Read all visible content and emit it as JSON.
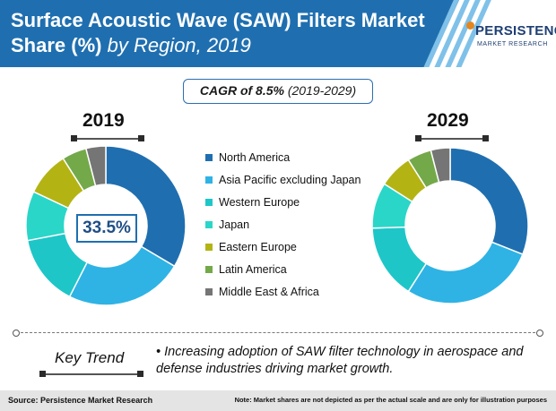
{
  "header": {
    "title_bold": "Surface Acoustic Wave (SAW) Filters Market Share (%)",
    "title_rest": " by Region, 2019",
    "logo_name": "PERSISTENCE",
    "logo_sub": "MARKET RESEARCH"
  },
  "cagr": {
    "label": "CAGR of 8.5%",
    "period": "(2019-2029)"
  },
  "callout": "33.5%",
  "key_trend": {
    "label": "Key Trend",
    "text": "• Increasing adoption of SAW filter technology in aerospace and defense industries driving market growth."
  },
  "footer": {
    "source": "Source: Persistence Market Research",
    "note": "Note: Market shares are not depicted as per the actual scale and are only for illustration purposes"
  },
  "chart_data": [
    {
      "type": "pie",
      "title": "2019",
      "categories": [
        "North America",
        "Asia Pacific excluding Japan",
        "Western Europe",
        "Japan",
        "Eastern Europe",
        "Latin America",
        "Middle East & Africa"
      ],
      "values": [
        33.5,
        24.0,
        14.5,
        10.0,
        9.0,
        5.0,
        4.0
      ],
      "colors": [
        "#1f6fb0",
        "#2fb3e5",
        "#1ec6c8",
        "#2ad6c8",
        "#b3b414",
        "#74a94a",
        "#757575"
      ],
      "data_labels": [
        "33.5%",
        "",
        "",
        "",
        "",
        "",
        ""
      ]
    },
    {
      "type": "pie",
      "title": "2029",
      "categories": [
        "North America",
        "Asia Pacific excluding Japan",
        "Western Europe",
        "Japan",
        "Eastern Europe",
        "Latin America",
        "Middle East & Africa"
      ],
      "values": [
        31.0,
        28.0,
        15.5,
        9.5,
        7.0,
        5.0,
        4.0
      ],
      "colors": [
        "#1f6fb0",
        "#2fb3e5",
        "#1ec6c8",
        "#2ad6c8",
        "#b3b414",
        "#74a94a",
        "#757575"
      ]
    }
  ]
}
